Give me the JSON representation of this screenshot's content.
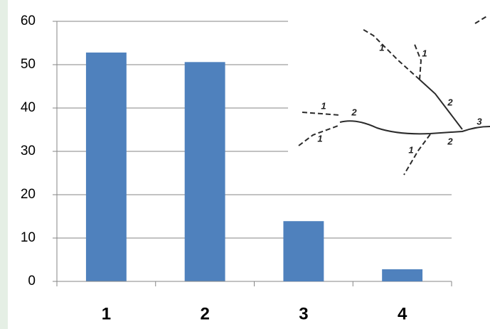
{
  "chart_data": {
    "type": "bar",
    "categories": [
      "1",
      "2",
      "3",
      "4"
    ],
    "values": [
      52.8,
      50.6,
      13.9,
      2.8
    ],
    "color": "#4f81bd",
    "ylim": [
      0,
      60
    ],
    "yticks": [
      0,
      10,
      20,
      30,
      40,
      50,
      60
    ],
    "grid": true,
    "annotations": [
      "1",
      "1",
      "1",
      "2",
      "1",
      "2",
      "3",
      "2",
      "1"
    ]
  }
}
